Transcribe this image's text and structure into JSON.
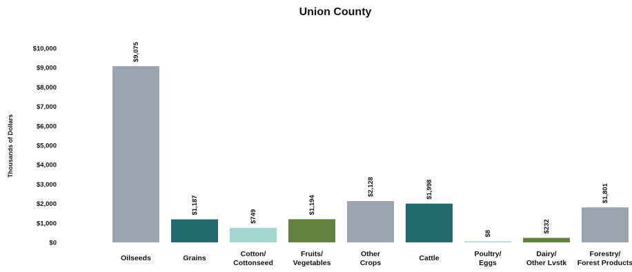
{
  "chart_data": {
    "type": "bar",
    "title": "Union County",
    "xlabel": "",
    "ylabel": "Thousands of Dollars",
    "categories": [
      [
        "Oilseeds"
      ],
      [
        "Grains"
      ],
      [
        "Cotton/",
        "Cottonseed"
      ],
      [
        "Fruits/",
        "Vegetables"
      ],
      [
        "Other",
        "Crops"
      ],
      [
        "Cattle"
      ],
      [
        "Poultry/",
        "Eggs"
      ],
      [
        "Dairy/",
        "Other Lvstk"
      ],
      [
        "Forestry/",
        "Forest Products"
      ]
    ],
    "values": [
      9075,
      1187,
      749,
      1194,
      2128,
      1998,
      8,
      232,
      1801
    ],
    "data_labels": [
      "$9,075",
      "$1,187",
      "$749",
      "$1,194",
      "$2,128",
      "$1,998",
      "$8",
      "$232",
      "$1,801"
    ],
    "colors": [
      "#9aa5af",
      "#236a6f",
      "#a3d6d0",
      "#63823b",
      "#9aa5af",
      "#236a6f",
      "#a3d6d0",
      "#63823b",
      "#9aa5af"
    ],
    "ylim": [
      0,
      10000
    ],
    "yticks": [
      0,
      1000,
      2000,
      3000,
      4000,
      5000,
      6000,
      7000,
      8000,
      9000,
      10000
    ],
    "ytick_labels": [
      "$0",
      "$1,000",
      "$2,000",
      "$3,000",
      "$4,000",
      "$5,000",
      "$6,000",
      "$7,000",
      "$8,000",
      "$9,000",
      "$10,000"
    ],
    "grid": false,
    "legend": "none"
  }
}
